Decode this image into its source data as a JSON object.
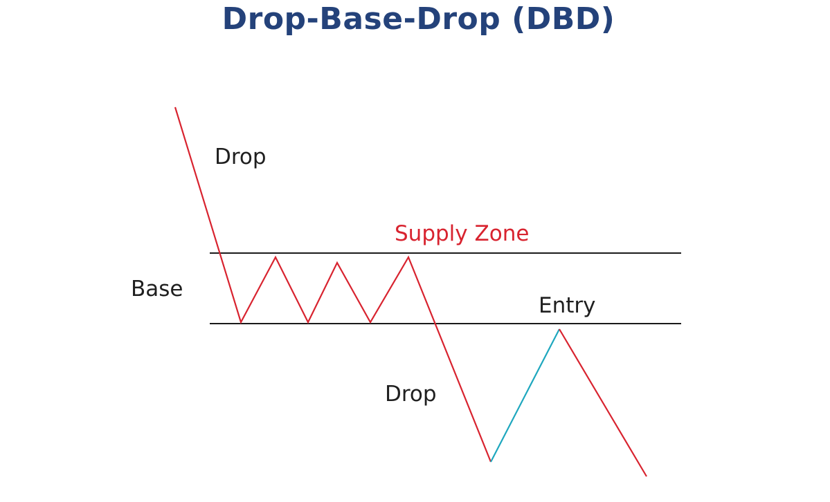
{
  "title": "Drop-Base-Drop (DBD)",
  "labels": {
    "drop_top": "Drop",
    "base": "Base",
    "supply_zone": "Supply Zone",
    "entry": "Entry",
    "drop_bottom": "Drop"
  },
  "colors": {
    "title": "#24427a",
    "price_line": "#d8232f",
    "entry_leg": "#1ea7be",
    "zone_lines": "#1a1a1a",
    "supply_zone_label": "#d8232f",
    "text": "#1f1f1f"
  }
}
